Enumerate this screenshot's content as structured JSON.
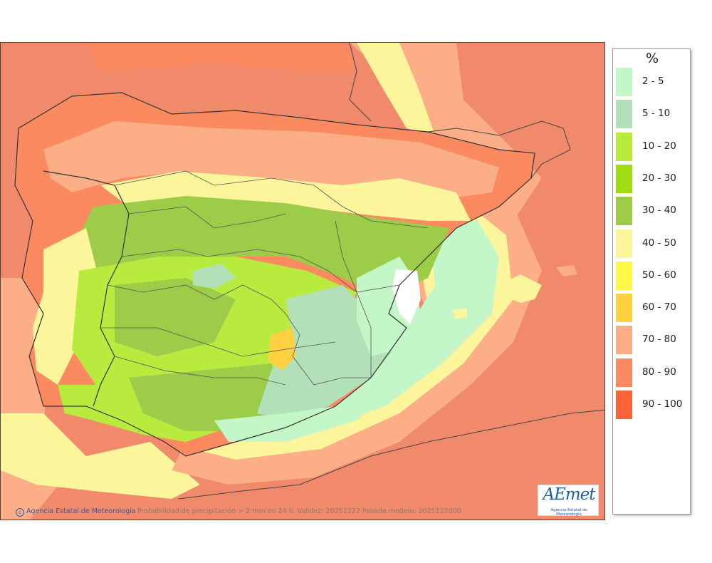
{
  "legend": {
    "unit": "%",
    "items": [
      {
        "label": "2 - 5",
        "color": "#c4f7c8"
      },
      {
        "label": "5 - 10",
        "color": "#b2e0b8"
      },
      {
        "label": "10 - 20",
        "color": "#b9eb3f"
      },
      {
        "label": "20 - 30",
        "color": "#a0dc14"
      },
      {
        "label": "30 - 40",
        "color": "#9ccc48"
      },
      {
        "label": "40 - 50",
        "color": "#fdf59c"
      },
      {
        "label": "50 - 60",
        "color": "#fff64a"
      },
      {
        "label": "60 - 70",
        "color": "#ffd040"
      },
      {
        "label": "70 - 80",
        "color": "#fcaf86"
      },
      {
        "label": "80 - 90",
        "color": "#fb8a60"
      },
      {
        "label": "90 - 100",
        "color": "#fa6238"
      }
    ]
  },
  "footer": {
    "credit": "Agencia Estatal de Meteorología",
    "caption": "Probabilidad de precipitación > 2 mm en 24 h. Validez: 20251222 Pasada modelo: 2025122000"
  },
  "logo": {
    "word": "AEmet",
    "sub": "Agencia Estatal de Meteorología"
  },
  "map": {
    "sea_color": "#f08a6a",
    "land_low_color": "#9ccc48",
    "dry_color": "#c4f7c8"
  }
}
